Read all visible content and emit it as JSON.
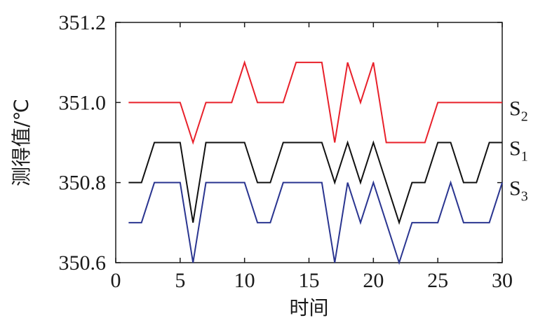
{
  "chart_data": {
    "type": "line",
    "title": "",
    "xlabel": "时间",
    "ylabel": "测得值/℃",
    "xlim": [
      0,
      30
    ],
    "ylim": [
      350.6,
      351.2
    ],
    "x_ticks": [
      0,
      5,
      10,
      15,
      20,
      25,
      30
    ],
    "y_ticks": [
      350.6,
      350.8,
      351.0,
      351.2
    ],
    "x_tick_labels": [
      "0",
      "5",
      "10",
      "15",
      "20",
      "25",
      "30"
    ],
    "y_tick_labels": [
      "350.6",
      "350.8",
      "351.0",
      "351.2"
    ],
    "grid": false,
    "legend_placement": "right-inline",
    "x": [
      1,
      2,
      3,
      4,
      5,
      6,
      7,
      8,
      9,
      10,
      11,
      12,
      13,
      14,
      15,
      16,
      17,
      18,
      19,
      20,
      21,
      22,
      23,
      24,
      25,
      26,
      27,
      28,
      29,
      30
    ],
    "series": [
      {
        "name": "S2",
        "label_main": "S",
        "label_sub": "2",
        "color": "#e8202a",
        "values": [
          351.0,
          351.0,
          351.0,
          351.0,
          351.0,
          350.9,
          351.0,
          351.0,
          351.0,
          351.1,
          351.0,
          351.0,
          351.0,
          351.1,
          351.1,
          351.1,
          350.9,
          351.1,
          351.0,
          351.1,
          350.9,
          350.9,
          350.9,
          350.9,
          351.0,
          351.0,
          351.0,
          351.0,
          351.0,
          351.0
        ]
      },
      {
        "name": "S1",
        "label_main": "S",
        "label_sub": "1",
        "color": "#111111",
        "values": [
          350.8,
          350.8,
          350.9,
          350.9,
          350.9,
          350.7,
          350.9,
          350.9,
          350.9,
          350.9,
          350.8,
          350.8,
          350.9,
          350.9,
          350.9,
          350.9,
          350.8,
          350.9,
          350.8,
          350.9,
          350.8,
          350.7,
          350.8,
          350.8,
          350.9,
          350.9,
          350.8,
          350.8,
          350.9,
          350.9
        ]
      },
      {
        "name": "S3",
        "label_main": "S",
        "label_sub": "3",
        "color": "#2a3590",
        "values": [
          350.7,
          350.7,
          350.8,
          350.8,
          350.8,
          350.6,
          350.8,
          350.8,
          350.8,
          350.8,
          350.7,
          350.7,
          350.8,
          350.8,
          350.8,
          350.8,
          350.6,
          350.8,
          350.7,
          350.8,
          350.7,
          350.6,
          350.7,
          350.7,
          350.7,
          350.8,
          350.7,
          350.7,
          350.7,
          350.8
        ]
      }
    ]
  }
}
